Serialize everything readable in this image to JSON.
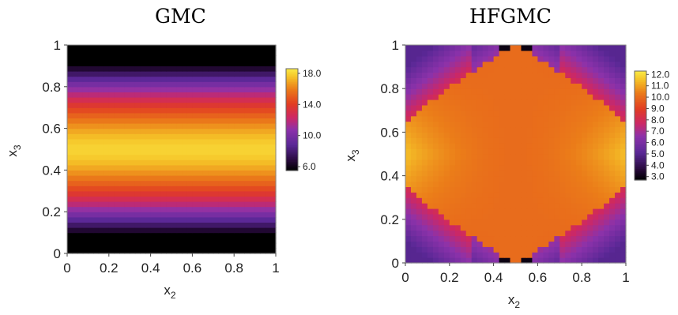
{
  "chart_data": [
    {
      "type": "heatmap",
      "title": "GMC",
      "xlabel": "x",
      "xlabel_sub": "2",
      "ylabel": "x",
      "ylabel_sub": "3",
      "xlim": [
        0,
        1
      ],
      "ylim": [
        0,
        1
      ],
      "x_ticks": [
        "0",
        "0.2",
        "0.4",
        "0.6",
        "0.8",
        "1"
      ],
      "y_ticks": [
        "0",
        "0.2",
        "0.4",
        "0.6",
        "0.8",
        "1"
      ],
      "colorbar": {
        "min": 5.5,
        "max": 18.6,
        "ticks": [
          "18.0",
          "14.0",
          "10.0",
          "6.0"
        ]
      },
      "field": {
        "kind": "layered_in_x3",
        "min_value": 6.0,
        "max_value": 18.0,
        "dark_band_fraction": 0.1,
        "grid": 40
      }
    },
    {
      "type": "heatmap",
      "title": "HFGMC",
      "xlabel": "x",
      "xlabel_sub": "2",
      "ylabel": "x",
      "ylabel_sub": "3",
      "xlim": [
        0,
        1
      ],
      "ylim": [
        0,
        1
      ],
      "x_ticks": [
        "0",
        "0.2",
        "0.4",
        "0.6",
        "0.8",
        "1"
      ],
      "y_ticks": [
        "0",
        "0.2",
        "0.4",
        "0.6",
        "0.8",
        "1"
      ],
      "colorbar": {
        "min": 2.7,
        "max": 12.3,
        "ticks": [
          "12.0",
          "11.0",
          "10.0",
          "9.0",
          "8.0",
          "7.0",
          "6.0",
          "5.0",
          "4.0",
          "3.0"
        ]
      },
      "field": {
        "kind": "central_lens",
        "peak_value": 11.5,
        "lens_value": 10.0,
        "outside_value": 5.0,
        "min_value": 3.0,
        "grid": 40
      }
    }
  ]
}
